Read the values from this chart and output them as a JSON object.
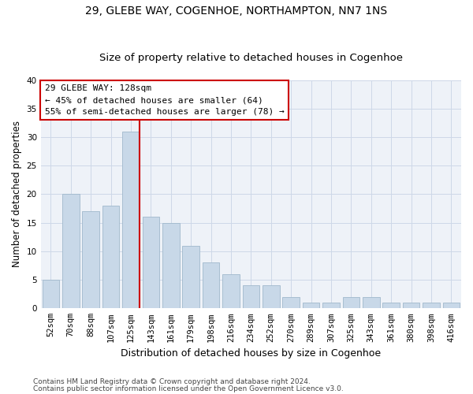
{
  "title1": "29, GLEBE WAY, COGENHOE, NORTHAMPTON, NN7 1NS",
  "title2": "Size of property relative to detached houses in Cogenhoe",
  "xlabel": "Distribution of detached houses by size in Cogenhoe",
  "ylabel": "Number of detached properties",
  "categories": [
    "52sqm",
    "70sqm",
    "88sqm",
    "107sqm",
    "125sqm",
    "143sqm",
    "161sqm",
    "179sqm",
    "198sqm",
    "216sqm",
    "234sqm",
    "252sqm",
    "270sqm",
    "289sqm",
    "307sqm",
    "325sqm",
    "343sqm",
    "361sqm",
    "380sqm",
    "398sqm",
    "416sqm"
  ],
  "values": [
    5,
    20,
    17,
    18,
    31,
    16,
    15,
    11,
    8,
    6,
    4,
    4,
    2,
    1,
    1,
    2,
    2,
    1,
    1,
    1,
    1
  ],
  "bar_color": "#c8d8e8",
  "bar_edge_color": "#a0b8cc",
  "marker_bin_index": 4,
  "marker_line_color": "#cc0000",
  "box_text_line1": "29 GLEBE WAY: 128sqm",
  "box_text_line2": "← 45% of detached houses are smaller (64)",
  "box_text_line3": "55% of semi-detached houses are larger (78) →",
  "box_color": "#cc0000",
  "ylim": [
    0,
    40
  ],
  "yticks": [
    0,
    5,
    10,
    15,
    20,
    25,
    30,
    35,
    40
  ],
  "grid_color": "#cdd8e8",
  "bg_color": "#eef2f8",
  "footer1": "Contains HM Land Registry data © Crown copyright and database right 2024.",
  "footer2": "Contains public sector information licensed under the Open Government Licence v3.0.",
  "title1_fontsize": 10,
  "title2_fontsize": 9.5,
  "tick_fontsize": 7.5,
  "xlabel_fontsize": 9,
  "ylabel_fontsize": 8.5,
  "footer_fontsize": 6.5
}
